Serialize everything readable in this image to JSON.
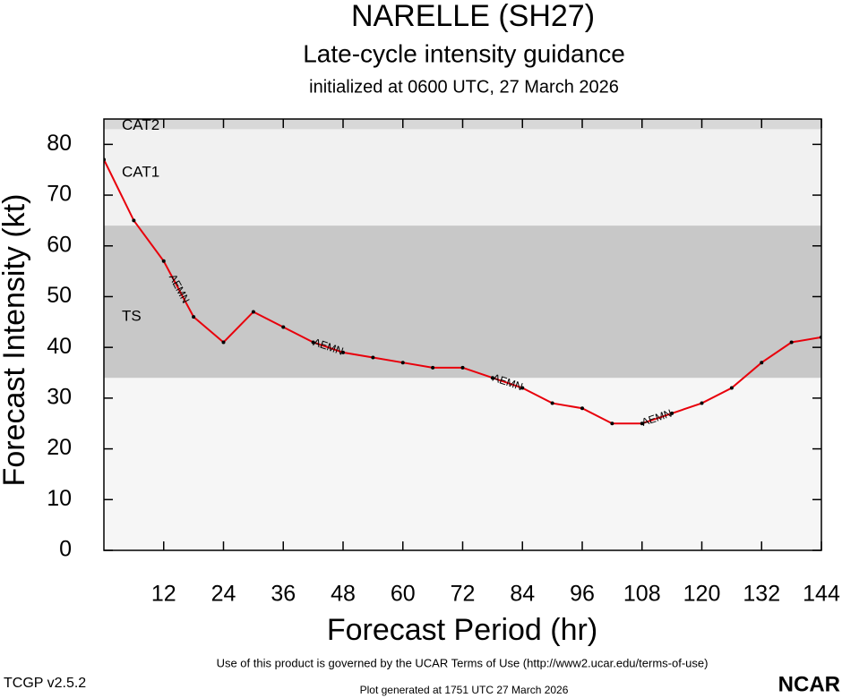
{
  "chart_data": {
    "type": "line",
    "title": "NARELLE (SH27)",
    "subtitle": "Late-cycle intensity guidance",
    "initialized": "initialized at 0600 UTC, 27 March 2026",
    "x_label": "Forecast Period (hr)",
    "y_label": "Forecast Intensity (kt)",
    "x": [
      0,
      6,
      12,
      18,
      24,
      30,
      36,
      42,
      48,
      54,
      60,
      66,
      72,
      78,
      84,
      90,
      96,
      102,
      108,
      114,
      120,
      126,
      132,
      138,
      144
    ],
    "series": [
      {
        "name": "AEMN",
        "color": "#e8000b",
        "values": [
          77,
          65,
          57,
          46,
          41,
          47,
          44,
          41,
          39,
          38,
          37,
          36,
          36,
          34,
          32,
          29,
          28,
          25,
          25,
          27,
          29,
          32,
          37,
          41,
          42
        ]
      }
    ],
    "bands": [
      {
        "name": "TS",
        "range": [
          34,
          64
        ],
        "color": "#c8c8c8"
      },
      {
        "name": "CAT1",
        "range": [
          64,
          83
        ],
        "color": "#f1f1f1"
      },
      {
        "name": "CAT2",
        "range": [
          83,
          85
        ],
        "color": "#d8d8d8"
      }
    ],
    "xlim": [
      0,
      144
    ],
    "xticks": [
      12,
      24,
      36,
      48,
      60,
      72,
      84,
      96,
      108,
      120,
      132,
      144
    ],
    "ylim": [
      0,
      85
    ],
    "yticks": [
      0,
      10,
      20,
      30,
      40,
      50,
      60,
      70,
      80
    ]
  },
  "footer": {
    "terms": "Use of this product is governed by the UCAR Terms of Use (http://www2.ucar.edu/terms-of-use)",
    "version": "TCGP v2.5.2",
    "generated": "Plot generated at 1751 UTC   27 March 2026",
    "logo": "NCAR"
  }
}
